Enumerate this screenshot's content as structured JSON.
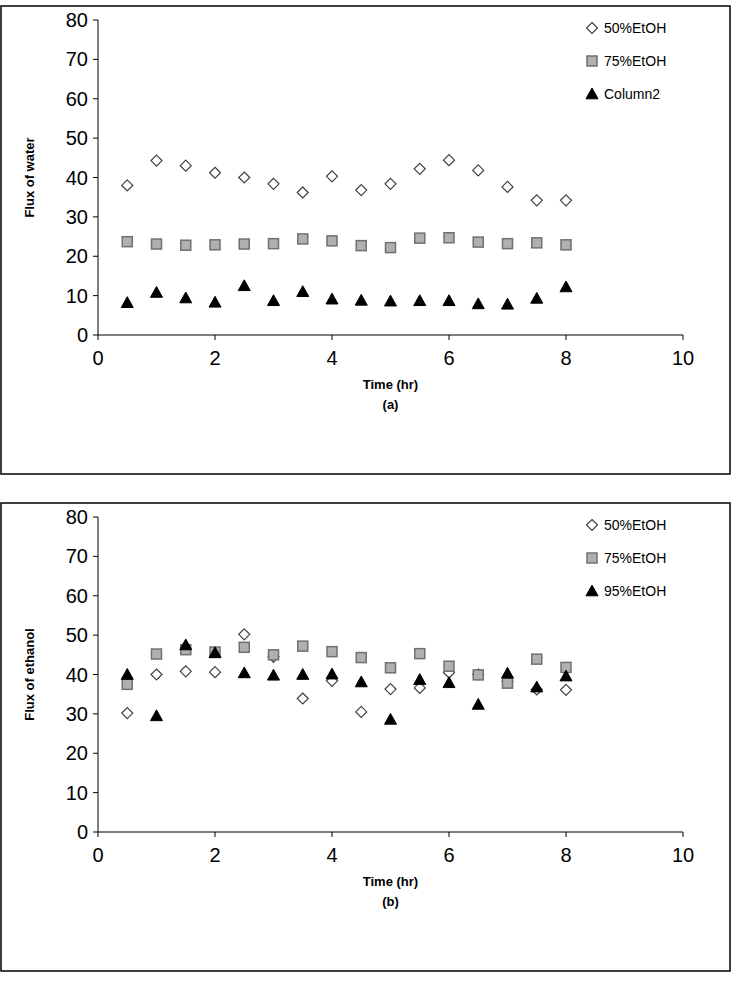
{
  "chart_data": [
    {
      "type": "scatter",
      "caption": "(a)",
      "x_label": "Time (hr)",
      "y_label": "Flux of water",
      "x": [
        0.5,
        1,
        1.5,
        2,
        2.5,
        3,
        3.5,
        4,
        4.5,
        5,
        5.5,
        6,
        6.5,
        7,
        7.5,
        8
      ],
      "xlim": [
        0,
        10
      ],
      "xticks": [
        0,
        2,
        4,
        6,
        8,
        10
      ],
      "ylim": [
        0,
        80
      ],
      "yticks": [
        0,
        10,
        20,
        30,
        40,
        50,
        60,
        70,
        80
      ],
      "grid": false,
      "legend": "top-right",
      "series": [
        {
          "name": "50%EtOH",
          "color": "#404040",
          "marker": "diamond",
          "values": [
            38,
            44.3,
            43,
            41.2,
            40,
            38.4,
            36.2,
            40.3,
            36.8,
            38.4,
            42.2,
            44.4,
            41.8,
            37.6,
            34.2,
            34.2
          ]
        },
        {
          "name": "75%EtOH",
          "color": "#707070",
          "marker": "square",
          "values": [
            23.7,
            23.1,
            22.8,
            22.9,
            23.1,
            23.2,
            24.4,
            23.9,
            22.7,
            22.2,
            24.6,
            24.7,
            23.6,
            23.2,
            23.4,
            22.9
          ]
        },
        {
          "name": "Column2",
          "color": "#000000",
          "marker": "triangle",
          "values": [
            8.2,
            10.8,
            9.4,
            8.3,
            12.5,
            8.7,
            11,
            9.1,
            8.8,
            8.6,
            8.7,
            8.7,
            7.9,
            7.8,
            9.3,
            12.2
          ]
        }
      ]
    },
    {
      "type": "scatter",
      "caption": "(b)",
      "x_label": "Time (hr)",
      "y_label": "Flux of ethanol",
      "x": [
        0.5,
        1,
        1.5,
        2,
        2.5,
        3,
        3.5,
        4,
        4.5,
        5,
        5.5,
        6,
        6.5,
        7,
        7.5,
        8
      ],
      "xlim": [
        0,
        10
      ],
      "xticks": [
        0,
        2,
        4,
        6,
        8,
        10
      ],
      "ylim": [
        0,
        80
      ],
      "yticks": [
        0,
        10,
        20,
        30,
        40,
        50,
        60,
        70,
        80
      ],
      "grid": false,
      "legend": "top-right",
      "series": [
        {
          "name": "50%EtOH",
          "color": "#404040",
          "marker": "diamond",
          "values": [
            30.2,
            40,
            40.8,
            40.6,
            50.2,
            44.5,
            33.9,
            38.4,
            30.5,
            36.3,
            36.6,
            40.5,
            40,
            38.2,
            36.2,
            36.1
          ]
        },
        {
          "name": "75%EtOH",
          "color": "#707070",
          "marker": "square",
          "values": [
            37.5,
            45.2,
            46.3,
            45.7,
            46.9,
            45,
            47.2,
            45.8,
            44.3,
            41.7,
            45.3,
            42.1,
            39.9,
            37.8,
            43.9,
            41.8
          ]
        },
        {
          "name": "95%EtOH",
          "color": "#000000",
          "marker": "triangle",
          "values": [
            40,
            29.5,
            47.5,
            45.5,
            40.4,
            39.8,
            40,
            40.1,
            38.1,
            28.6,
            38.7,
            37.9,
            32.4,
            40.3,
            36.8,
            39.6
          ]
        }
      ]
    }
  ]
}
